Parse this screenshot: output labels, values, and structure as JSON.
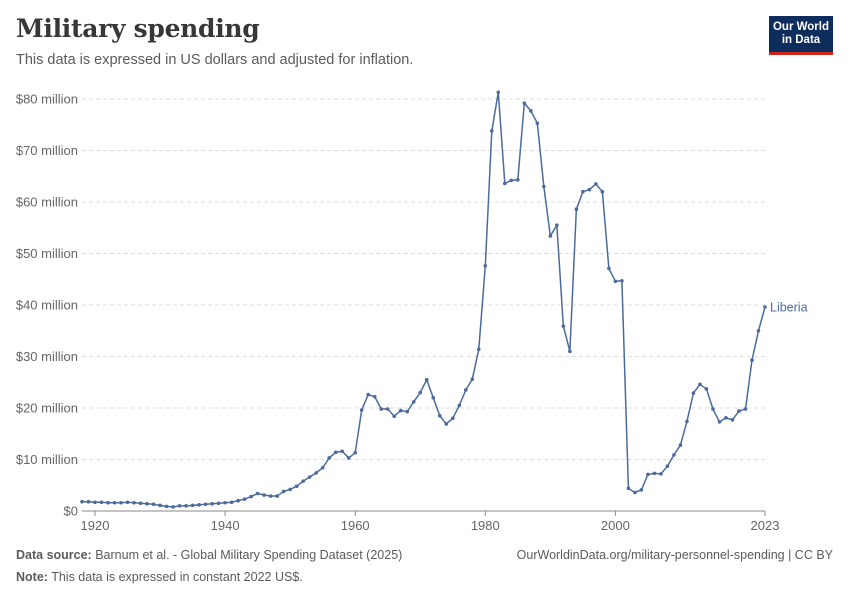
{
  "header": {
    "title": "Military spending",
    "subtitle": "This data is expressed in US dollars and adjusted for inflation."
  },
  "logo": {
    "line1": "Our World",
    "line2": "in Data"
  },
  "footer": {
    "source_label": "Data source:",
    "source_text": "Barnum et al. - Global Military Spending Dataset (2025)",
    "url_text": "OurWorldinData.org/military-personnel-spending | CC BY",
    "note_label": "Note:",
    "note_text": "This data is expressed in constant 2022 US$."
  },
  "colors": {
    "series": "#4c6a9c",
    "grid": "#dddddd",
    "axis": "#8a8a8a",
    "logo_bg": "#0d2d5c",
    "logo_accent": "#ce261e"
  },
  "chart_data": {
    "type": "line",
    "xlim": [
      1918,
      2023
    ],
    "ylim": [
      0,
      80
    ],
    "y_ticks": [
      0,
      10,
      20,
      30,
      40,
      50,
      60,
      70,
      80
    ],
    "y_tick_labels": [
      "$0",
      "$10 million",
      "$20 million",
      "$30 million",
      "$40 million",
      "$50 million",
      "$60 million",
      "$70 million",
      "$80 million"
    ],
    "x_ticks": [
      1920,
      1940,
      1960,
      1980,
      2000,
      2023
    ],
    "x_tick_labels": [
      "1920",
      "1940",
      "1960",
      "1980",
      "2000",
      "2023"
    ],
    "grid": true,
    "y_unit": "million US$",
    "series": [
      {
        "name": "Liberia",
        "x": [
          1918,
          1919,
          1920,
          1921,
          1922,
          1923,
          1924,
          1925,
          1926,
          1927,
          1928,
          1929,
          1930,
          1931,
          1932,
          1933,
          1934,
          1935,
          1936,
          1937,
          1938,
          1939,
          1940,
          1941,
          1942,
          1943,
          1944,
          1945,
          1946,
          1947,
          1948,
          1949,
          1950,
          1951,
          1952,
          1953,
          1954,
          1955,
          1956,
          1957,
          1958,
          1959,
          1960,
          1961,
          1962,
          1963,
          1964,
          1965,
          1966,
          1967,
          1968,
          1969,
          1970,
          1971,
          1972,
          1973,
          1974,
          1975,
          1976,
          1977,
          1978,
          1979,
          1980,
          1981,
          1982,
          1983,
          1984,
          1985,
          1986,
          1987,
          1988,
          1989,
          1990,
          1991,
          1992,
          1993,
          1994,
          1995,
          1996,
          1997,
          1998,
          1999,
          2000,
          2001,
          2002,
          2003,
          2004,
          2005,
          2006,
          2007,
          2008,
          2009,
          2010,
          2011,
          2012,
          2013,
          2014,
          2015,
          2016,
          2017,
          2018,
          2019,
          2020,
          2021,
          2022,
          2023
        ],
        "values": [
          1.8,
          1.8,
          1.7,
          1.7,
          1.6,
          1.6,
          1.6,
          1.7,
          1.6,
          1.5,
          1.4,
          1.3,
          1.1,
          0.9,
          0.8,
          1.0,
          1.0,
          1.1,
          1.2,
          1.3,
          1.4,
          1.5,
          1.6,
          1.7,
          2.0,
          2.3,
          2.8,
          3.4,
          3.1,
          2.9,
          2.9,
          3.8,
          4.2,
          4.8,
          5.8,
          6.6,
          7.4,
          8.4,
          10.3,
          11.4,
          11.6,
          10.3,
          11.3,
          19.6,
          22.6,
          22.2,
          19.8,
          19.8,
          18.4,
          19.5,
          19.3,
          21.2,
          23.0,
          25.5,
          22.0,
          18.5,
          16.9,
          18.0,
          20.5,
          23.5,
          25.6,
          31.4,
          47.6,
          73.8,
          81.3,
          63.6,
          64.2,
          64.3,
          79.2,
          77.7,
          75.3,
          63.0,
          53.4,
          55.5,
          35.9,
          31.0,
          58.6,
          62.0,
          62.4,
          63.5,
          62.0,
          47.1,
          44.6,
          44.7,
          4.4,
          3.6,
          4.1,
          7.1,
          7.3,
          7.2,
          8.7,
          10.9,
          12.8,
          17.4,
          22.9,
          24.6,
          23.7,
          19.8,
          17.3,
          18.1,
          17.7,
          19.4,
          19.8,
          29.3,
          35.0,
          39.6
        ]
      }
    ]
  }
}
